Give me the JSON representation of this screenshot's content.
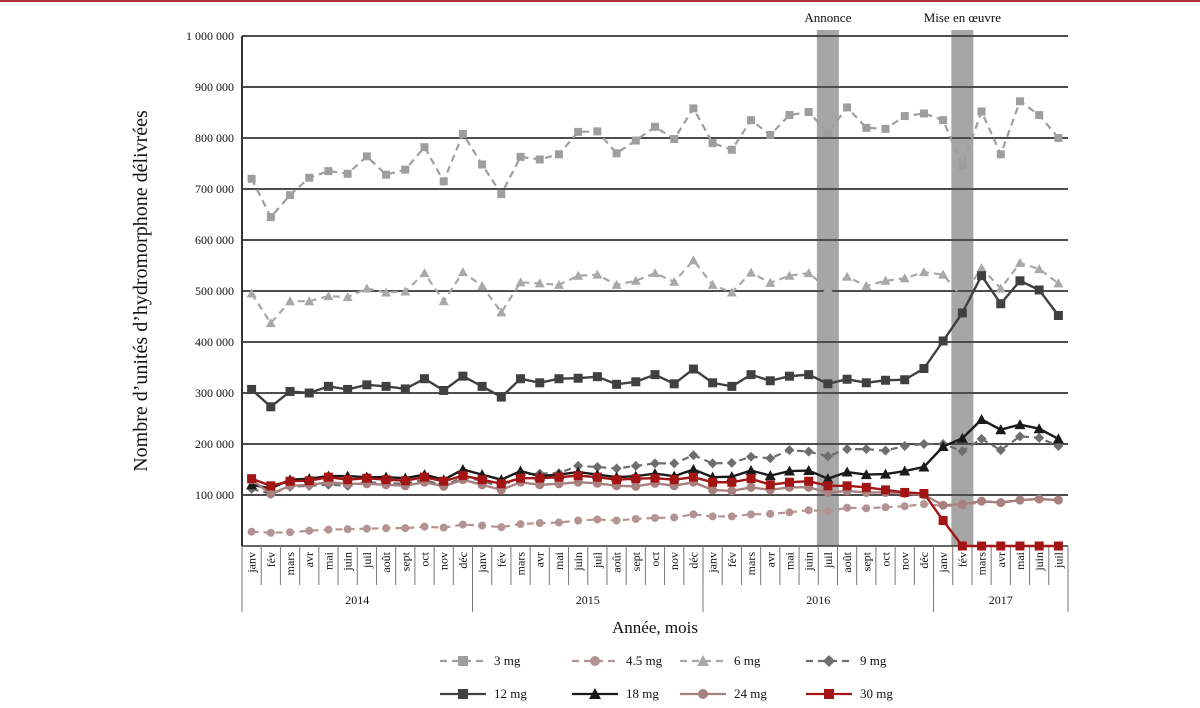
{
  "chart_data": {
    "type": "line",
    "title": "",
    "ylabel": "Nombre d’unités d’hydromorphone délivrées",
    "xlabel": "Année, mois",
    "ylim": [
      0,
      1000000
    ],
    "yticks": [
      0,
      100000,
      200000,
      300000,
      400000,
      500000,
      600000,
      700000,
      800000,
      900000,
      1000000
    ],
    "ytick_labels": [
      "100 000",
      "200 000",
      "300 000",
      "400 000",
      "500 000",
      "600 000",
      "700 000",
      "800 000",
      "900 000",
      "1 000 000"
    ],
    "grid": "horizontal",
    "legend_position": "bottom",
    "years": [
      {
        "label": "2014",
        "months": 12
      },
      {
        "label": "2015",
        "months": 12
      },
      {
        "label": "2016",
        "months": 12
      },
      {
        "label": "2017",
        "months": 7
      }
    ],
    "x": [
      "janv",
      "fév",
      "mars",
      "avr",
      "mai",
      "juin",
      "juil",
      "août",
      "sept",
      "oct",
      "nov",
      "déc",
      "janv",
      "fév",
      "mars",
      "avr",
      "mai",
      "juin",
      "juil",
      "août",
      "sept",
      "oct",
      "nov",
      "déc",
      "janv",
      "fév",
      "mars",
      "avr",
      "mai",
      "juin",
      "juil",
      "août",
      "sept",
      "oct",
      "nov",
      "déc",
      "janv",
      "fév",
      "mars",
      "avr",
      "mai",
      "juin",
      "juil"
    ],
    "annotations": [
      {
        "label": "Annonce",
        "x_index": 30
      },
      {
        "label": "Mise en œuvre",
        "x_index": 37
      }
    ],
    "series": [
      {
        "name": "3 mg",
        "color": "#9e9e9e",
        "dash": true,
        "marker": "square",
        "values": [
          720000,
          645000,
          688000,
          722000,
          735000,
          730000,
          764000,
          728000,
          738000,
          782000,
          715000,
          808000,
          748000,
          690000,
          763000,
          758000,
          768000,
          812000,
          813000,
          770000,
          795000,
          822000,
          798000,
          858000,
          790000,
          777000,
          835000,
          806000,
          845000,
          851000,
          810000,
          860000,
          820000,
          818000,
          843000,
          848000,
          835000,
          745000,
          852000,
          768000,
          872000,
          845000,
          800000
        ]
      },
      {
        "name": "4.5 mg",
        "color": "#b39393",
        "dash": true,
        "marker": "circle",
        "values": [
          28000,
          26000,
          27000,
          30000,
          32000,
          33000,
          34000,
          35000,
          35000,
          38000,
          36000,
          42000,
          40000,
          37000,
          43000,
          45000,
          46000,
          50000,
          52000,
          50000,
          53000,
          55000,
          56000,
          62000,
          58000,
          58000,
          62000,
          63000,
          66000,
          70000,
          68000,
          75000,
          74000,
          76000,
          78000,
          82000,
          79000,
          78000,
          87000,
          86000,
          90000,
          92000,
          90000
        ]
      },
      {
        "name": "6 mg",
        "color": "#a8a8a8",
        "dash": true,
        "marker": "triangle",
        "values": [
          495000,
          437000,
          480000,
          480000,
          490000,
          488000,
          505000,
          497000,
          499000,
          535000,
          480000,
          537000,
          510000,
          458000,
          517000,
          515000,
          512000,
          530000,
          532000,
          512000,
          520000,
          535000,
          518000,
          560000,
          512000,
          497000,
          536000,
          516000,
          530000,
          535000,
          505000,
          528000,
          510000,
          520000,
          525000,
          537000,
          532000,
          488000,
          545000,
          505000,
          555000,
          543000,
          515000
        ]
      },
      {
        "name": "9 mg",
        "color": "#6e6e6e",
        "dash": true,
        "marker": "diamond",
        "values": [
          112000,
          102000,
          116000,
          118000,
          120000,
          118000,
          125000,
          123000,
          122000,
          130000,
          118000,
          135000,
          128000,
          115000,
          140000,
          142000,
          143000,
          157000,
          155000,
          152000,
          157000,
          162000,
          162000,
          178000,
          162000,
          163000,
          175000,
          172000,
          188000,
          185000,
          176000,
          190000,
          190000,
          187000,
          196000,
          200000,
          200000,
          186000,
          210000,
          188000,
          215000,
          212000,
          196000
        ]
      },
      {
        "name": "12 mg",
        "color": "#404040",
        "dash": false,
        "marker": "square",
        "values": [
          307000,
          273000,
          303000,
          300000,
          313000,
          307000,
          316000,
          313000,
          308000,
          328000,
          305000,
          333000,
          313000,
          292000,
          328000,
          320000,
          328000,
          329000,
          332000,
          317000,
          322000,
          336000,
          318000,
          347000,
          320000,
          313000,
          336000,
          324000,
          333000,
          336000,
          318000,
          327000,
          320000,
          325000,
          326000,
          348000,
          402000,
          457000,
          530000,
          475000,
          520000,
          502000,
          452000
        ]
      },
      {
        "name": "18 mg",
        "color": "#1a1a1a",
        "dash": false,
        "marker": "triangle",
        "values": [
          120000,
          113000,
          130000,
          132000,
          137000,
          137000,
          135000,
          135000,
          133000,
          140000,
          130000,
          150000,
          140000,
          130000,
          147000,
          137000,
          140000,
          145000,
          140000,
          135000,
          137000,
          142000,
          137000,
          150000,
          135000,
          136000,
          148000,
          138000,
          147000,
          148000,
          132000,
          145000,
          140000,
          141000,
          147000,
          155000,
          195000,
          211000,
          248000,
          228000,
          238000,
          230000,
          210000
        ]
      },
      {
        "name": "24 mg",
        "color": "#a88080",
        "dash": false,
        "marker": "circle",
        "values": [
          130000,
          102000,
          118000,
          120000,
          125000,
          122000,
          122000,
          120000,
          118000,
          125000,
          117000,
          130000,
          120000,
          110000,
          125000,
          120000,
          122000,
          125000,
          123000,
          118000,
          117000,
          123000,
          118000,
          125000,
          110000,
          108000,
          115000,
          110000,
          115000,
          115000,
          105000,
          108000,
          105000,
          105000,
          103000,
          100000,
          80000,
          82000,
          88000,
          85000,
          90000,
          92000,
          90000
        ]
      },
      {
        "name": "30 mg",
        "color": "#a31515",
        "dash": false,
        "marker": "square",
        "values": [
          132000,
          118000,
          127000,
          128000,
          135000,
          130000,
          133000,
          130000,
          128000,
          135000,
          127000,
          138000,
          130000,
          122000,
          133000,
          133000,
          135000,
          138000,
          135000,
          130000,
          132000,
          133000,
          130000,
          135000,
          125000,
          125000,
          132000,
          120000,
          125000,
          127000,
          118000,
          118000,
          115000,
          110000,
          105000,
          103000,
          50000,
          0,
          0,
          0,
          0,
          0,
          0
        ]
      }
    ]
  }
}
